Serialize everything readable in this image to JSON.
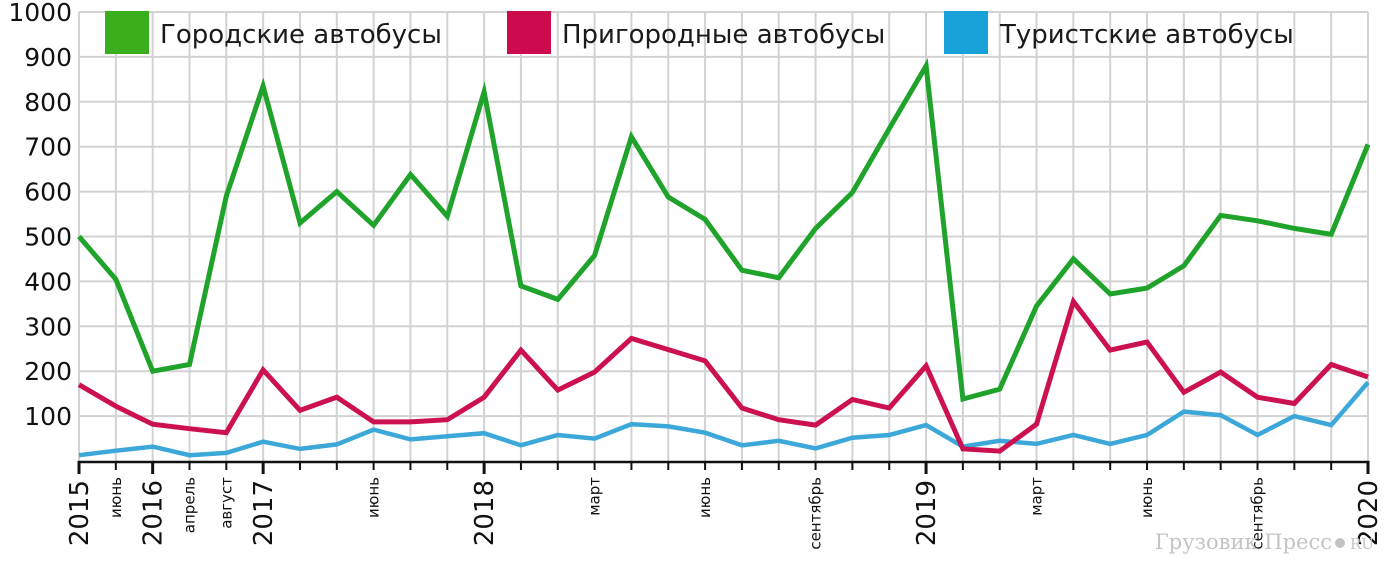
{
  "chart_data": {
    "type": "line",
    "ylim": [
      0,
      1000
    ],
    "y_ticks": [
      100,
      200,
      300,
      400,
      500,
      600,
      700,
      800,
      900,
      1000
    ],
    "grid": true,
    "legend_placement": "top",
    "x_labels": [
      {
        "i": 0,
        "text": "2015",
        "kind": "year"
      },
      {
        "i": 1,
        "text": "июнь",
        "kind": "month"
      },
      {
        "i": 2,
        "text": "2016",
        "kind": "year"
      },
      {
        "i": 3,
        "text": "апрель",
        "kind": "month"
      },
      {
        "i": 4,
        "text": "август",
        "kind": "month"
      },
      {
        "i": 5,
        "text": "2017",
        "kind": "year"
      },
      {
        "i": 8,
        "text": "июнь",
        "kind": "month"
      },
      {
        "i": 11,
        "text": "2018",
        "kind": "year"
      },
      {
        "i": 14,
        "text": "март",
        "kind": "month"
      },
      {
        "i": 17,
        "text": "июнь",
        "kind": "month"
      },
      {
        "i": 20,
        "text": "сентябрь",
        "kind": "month"
      },
      {
        "i": 23,
        "text": "2019",
        "kind": "year"
      },
      {
        "i": 26,
        "text": "март",
        "kind": "month"
      },
      {
        "i": 29,
        "text": "июнь",
        "kind": "month"
      },
      {
        "i": 32,
        "text": "сентябрь",
        "kind": "month"
      },
      {
        "i": 35,
        "text": "2020",
        "kind": "year"
      }
    ],
    "series": [
      {
        "name": "Городские автобусы",
        "color": "#1fa32a",
        "legend_color": "#3aae1c",
        "values": [
          500,
          405,
          200,
          215,
          590,
          835,
          530,
          600,
          525,
          638,
          545,
          822,
          390,
          360,
          458,
          722,
          588,
          538,
          425,
          408,
          518,
          598,
          740,
          880,
          138,
          160,
          345,
          450,
          372,
          385,
          435,
          547,
          535,
          518,
          505,
          705
        ]
      },
      {
        "name": "Пригородные автобусы",
        "color": "#cc1151",
        "legend_color": "#cc0a4e",
        "values": [
          170,
          122,
          82,
          72,
          63,
          203,
          113,
          142,
          87,
          87,
          92,
          142,
          247,
          158,
          198,
          273,
          248,
          223,
          118,
          92,
          80,
          137,
          118,
          212,
          27,
          22,
          82,
          355,
          247,
          265,
          153,
          198,
          142,
          128,
          215,
          187
        ]
      },
      {
        "name": "Туристские автобусы",
        "color": "#3ca7d9",
        "legend_color": "#18a0d8",
        "values": [
          13,
          23,
          32,
          13,
          18,
          43,
          27,
          37,
          70,
          48,
          55,
          62,
          35,
          58,
          50,
          82,
          77,
          63,
          35,
          45,
          28,
          52,
          58,
          80,
          32,
          45,
          38,
          58,
          38,
          58,
          110,
          102,
          58,
          100,
          80,
          175
        ]
      }
    ]
  },
  "watermark": {
    "text": "Грузовик Пресс",
    "suffix": "RU",
    "dot_color": "#c4c4c4"
  }
}
